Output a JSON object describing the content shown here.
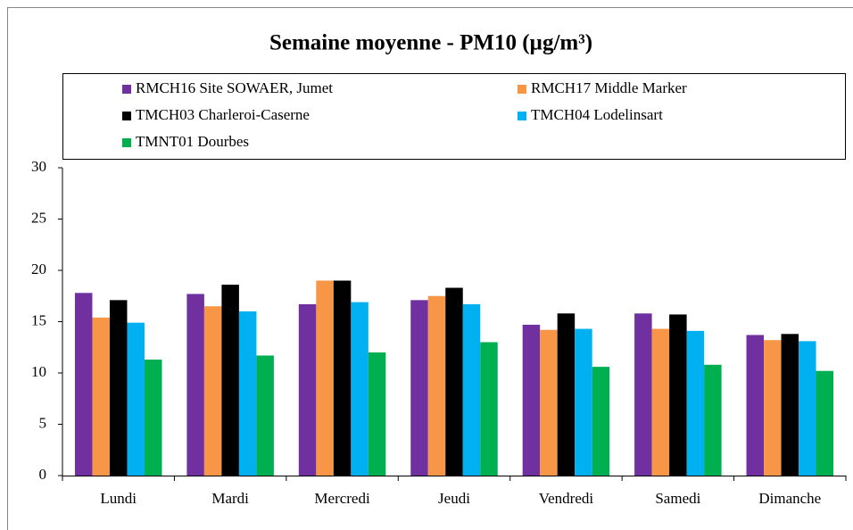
{
  "chart_data": {
    "type": "bar",
    "title": "Semaine moyenne - PM10 (µg/m³)",
    "categories": [
      "Lundi",
      "Mardi",
      "Mercredi",
      "Jeudi",
      "Vendredi",
      "Samedi",
      "Dimanche"
    ],
    "series": [
      {
        "name": "RMCH16 Site SOWAER, Jumet",
        "color": "#7030a0",
        "values": [
          17.8,
          17.7,
          16.7,
          17.1,
          14.7,
          15.8,
          13.7
        ]
      },
      {
        "name": "RMCH17 Middle Marker",
        "color": "#f79646",
        "values": [
          15.4,
          16.5,
          19.0,
          17.5,
          14.2,
          14.3,
          13.2
        ]
      },
      {
        "name": "TMCH03 Charleroi-Caserne",
        "color": "#000000",
        "values": [
          17.1,
          18.6,
          19.0,
          18.3,
          15.8,
          15.7,
          13.8
        ]
      },
      {
        "name": "TMCH04 Lodelinsart",
        "color": "#00b0f0",
        "values": [
          14.9,
          16.0,
          16.9,
          16.7,
          14.3,
          14.1,
          13.1
        ]
      },
      {
        "name": "TMNT01 Dourbes",
        "color": "#00b050",
        "values": [
          11.3,
          11.7,
          12.0,
          13.0,
          10.6,
          10.8,
          10.2
        ]
      }
    ],
    "ylim": [
      0,
      30
    ],
    "yticks": [
      0,
      5,
      10,
      15,
      20,
      25,
      30
    ],
    "grid": false
  }
}
